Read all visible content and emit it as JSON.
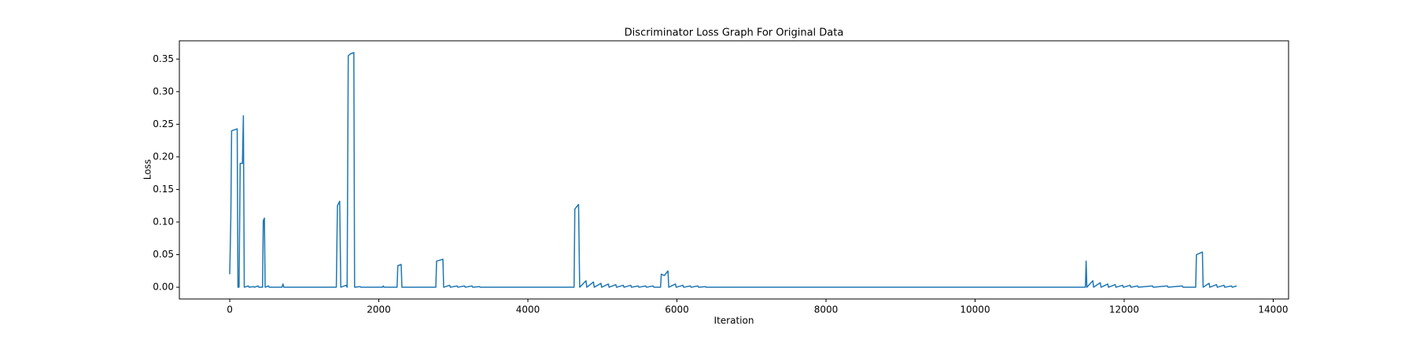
{
  "chart_data": {
    "type": "line",
    "title": "Discriminator Loss Graph For Original Data",
    "x_label": "Iteration",
    "y_label": "Loss",
    "color": "#1f77b4",
    "xlim": [
      -676,
      14206
    ],
    "ylim": [
      -0.018,
      0.378
    ],
    "xticks": [
      0,
      2000,
      4000,
      6000,
      8000,
      10000,
      12000,
      14000
    ],
    "yticks": [
      {
        "value": 0,
        "label": "0.00"
      },
      {
        "value": 0.05,
        "label": "0.05"
      },
      {
        "value": 0.1,
        "label": "0.10"
      },
      {
        "value": 0.15,
        "label": "0.15"
      },
      {
        "value": 0.2,
        "label": "0.20"
      },
      {
        "value": 0.25,
        "label": "0.25"
      },
      {
        "value": 0.3,
        "label": "0.30"
      },
      {
        "value": 0.35,
        "label": "0.35"
      }
    ],
    "x": [
      0,
      15,
      25,
      100,
      110,
      125,
      140,
      170,
      183,
      195,
      250,
      260,
      320,
      330,
      380,
      390,
      440,
      450,
      465,
      475,
      520,
      530,
      700,
      715,
      725,
      1430,
      1445,
      1475,
      1490,
      1560,
      1575,
      1590,
      1620,
      1665,
      1675,
      1750,
      1760,
      2050,
      2060,
      2070,
      2245,
      2255,
      2300,
      2310,
      2765,
      2775,
      2860,
      2870,
      2950,
      2960,
      3050,
      3060,
      3150,
      3160,
      3250,
      3260,
      3350,
      3360,
      4620,
      4630,
      4680,
      4695,
      4780,
      4790,
      4880,
      4890,
      4980,
      4990,
      5080,
      5090,
      5180,
      5190,
      5280,
      5290,
      5380,
      5390,
      5480,
      5490,
      5580,
      5590,
      5680,
      5690,
      5780,
      5790,
      5830,
      5880,
      5890,
      5980,
      5990,
      6080,
      6090,
      6180,
      6190,
      6280,
      6290,
      6380,
      6390,
      11480,
      11490,
      11500,
      11580,
      11590,
      11680,
      11690,
      11780,
      11790,
      11880,
      11890,
      11980,
      11990,
      12080,
      12090,
      12180,
      12190,
      12380,
      12390,
      12580,
      12590,
      12780,
      12790,
      12960,
      12970,
      13050,
      13060,
      13140,
      13150,
      13240,
      13250,
      13340,
      13350,
      13440,
      13450,
      13510
    ],
    "values": [
      0.02,
      0.11,
      0.24,
      0.243,
      0,
      0,
      0.19,
      0.19,
      0.263,
      0,
      0.002,
      0,
      0.001,
      0,
      0.002,
      0,
      0,
      0.102,
      0.106,
      0,
      0.002,
      0,
      0,
      0.005,
      0,
      0,
      0.125,
      0.132,
      0,
      0.003,
      0,
      0.355,
      0.358,
      0.36,
      0,
      0.001,
      0,
      0,
      0.002,
      0,
      0,
      0.033,
      0.035,
      0,
      0,
      0.04,
      0.043,
      0,
      0.003,
      0,
      0.002,
      0,
      0.002,
      0,
      0.002,
      0,
      0.001,
      0,
      0,
      0.12,
      0.127,
      0,
      0.01,
      0,
      0.008,
      0,
      0.006,
      0,
      0.005,
      0,
      0.004,
      0,
      0.003,
      0,
      0.003,
      0,
      0.002,
      0,
      0.002,
      0,
      0.002,
      0,
      0,
      0.02,
      0.018,
      0.025,
      0,
      0.005,
      0,
      0.003,
      0,
      0.002,
      0,
      0.002,
      0,
      0.001,
      0,
      0,
      0.04,
      0,
      0.01,
      0,
      0.007,
      0,
      0.005,
      0,
      0.004,
      0,
      0.003,
      0,
      0.003,
      0,
      0.002,
      0,
      0.002,
      0,
      0.002,
      0,
      0.002,
      0,
      0,
      0.05,
      0.054,
      0,
      0.006,
      0,
      0.004,
      0,
      0.003,
      0,
      0.002,
      0,
      0.002
    ]
  }
}
